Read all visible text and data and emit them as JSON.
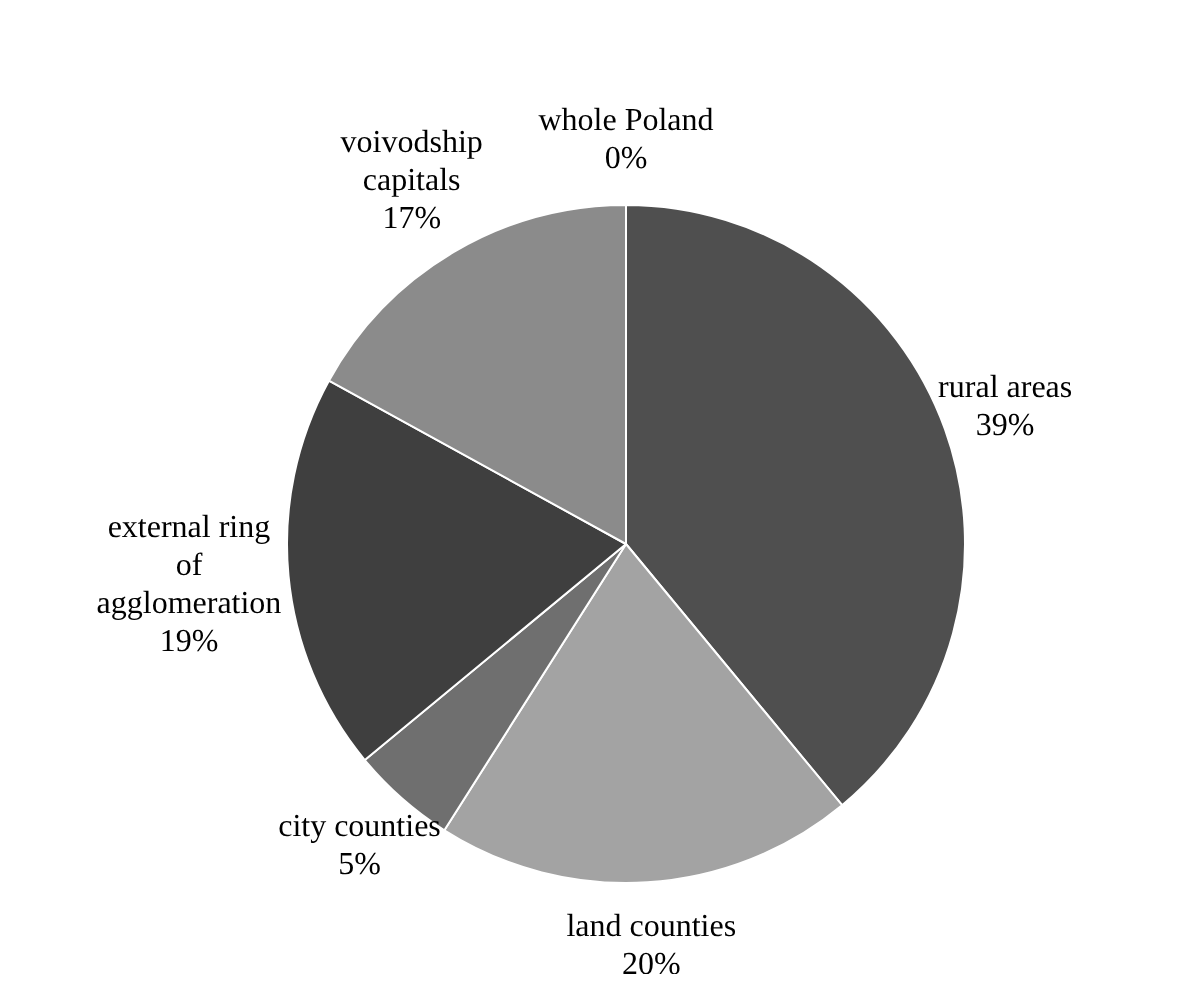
{
  "chart_data": {
    "type": "pie",
    "categories": [
      "rural areas",
      "land counties",
      "city counties",
      "external ring of agglomeration",
      "voivodship capitals",
      "whole Poland"
    ],
    "values": [
      39,
      20,
      5,
      19,
      17,
      0
    ],
    "colors": [
      "#4f4f4f",
      "#a3a3a3",
      "#6f6f6f",
      "#3f3f3f",
      "#8b8b8b",
      "#c8c8c8"
    ],
    "value_labels": [
      "39%",
      "20%",
      "5%",
      "19%",
      "17%",
      "0%"
    ],
    "legend": false
  }
}
